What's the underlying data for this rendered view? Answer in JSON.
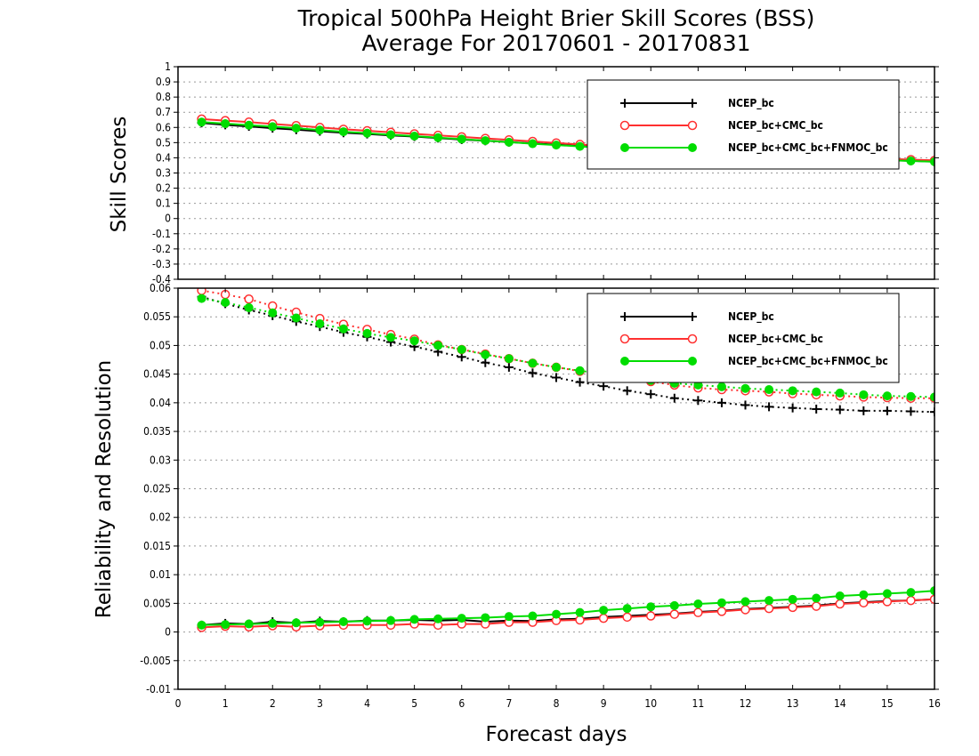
{
  "chart_data": {
    "type": "line",
    "title": "Tropical 500hPa Height Brier Skill Scores (BSS)",
    "subtitle": "Average For 20170601 - 20170831",
    "xlabel": "Forecast days",
    "xlim": [
      0,
      16
    ],
    "x_ticks": [
      "0",
      "1",
      "2",
      "3",
      "4",
      "5",
      "6",
      "7",
      "8",
      "9",
      "10",
      "11",
      "12",
      "13",
      "14",
      "15",
      "16"
    ],
    "x": [
      0.5,
      1,
      1.5,
      2,
      2.5,
      3,
      3.5,
      4,
      4.5,
      5,
      5.5,
      6,
      6.5,
      7,
      7.5,
      8,
      8.5,
      9,
      9.5,
      10,
      10.5,
      11,
      11.5,
      12,
      12.5,
      13,
      13.5,
      14,
      14.5,
      15,
      15.5,
      16
    ],
    "legend_labels": [
      "NCEP_bc",
      "NCEP_bc+CMC_bc",
      "NCEP_bc+CMC_bc+FNMOC_bc"
    ],
    "colors": {
      "NCEP_bc": "#000000",
      "NCEP_bc+CMC_bc": "#ff3030",
      "NCEP_bc+CMC_bc+FNMOC_bc": "#00dd00",
      "grid": "#999999"
    },
    "grid": true,
    "panels": [
      {
        "ylabel": "Skill Scores",
        "ylim": [
          -0.4,
          1
        ],
        "y_ticks": [
          "1",
          "0.9",
          "0.8",
          "0.7",
          "0.6",
          "0.5",
          "0.4",
          "0.3",
          "0.2",
          "0.1",
          "0",
          "-0.1",
          "-0.2",
          "-0.3",
          "-0.4"
        ],
        "legend_position": "top-right",
        "series": [
          {
            "name": "NCEP_bc",
            "marker": "plus",
            "style": "solid",
            "values": [
              0.63,
              0.617,
              0.607,
              0.595,
              0.585,
              0.575,
              0.565,
              0.557,
              0.548,
              0.54,
              0.53,
              0.52,
              0.512,
              0.503,
              0.495,
              0.487,
              0.478,
              0.47,
              0.462,
              0.455,
              0.447,
              0.44,
              0.433,
              0.425,
              0.418,
              0.412,
              0.405,
              0.398,
              0.392,
              0.385,
              0.38,
              0.375
            ]
          },
          {
            "name": "NCEP_bc+CMC_bc",
            "marker": "circle-open",
            "style": "solid",
            "values": [
              0.655,
              0.645,
              0.635,
              0.623,
              0.612,
              0.6,
              0.588,
              0.578,
              0.568,
              0.558,
              0.548,
              0.538,
              0.528,
              0.518,
              0.508,
              0.498,
              0.488,
              0.478,
              0.47,
              0.462,
              0.455,
              0.448,
              0.44,
              0.433,
              0.426,
              0.42,
              0.413,
              0.406,
              0.4,
              0.393,
              0.388,
              0.383
            ]
          },
          {
            "name": "NCEP_bc+CMC_bc+FNMOC_bc",
            "marker": "circle-filled",
            "style": "solid",
            "values": [
              0.635,
              0.625,
              0.615,
              0.605,
              0.595,
              0.583,
              0.572,
              0.562,
              0.552,
              0.543,
              0.533,
              0.523,
              0.513,
              0.503,
              0.493,
              0.484,
              0.475,
              0.466,
              0.458,
              0.45,
              0.443,
              0.436,
              0.429,
              0.422,
              0.415,
              0.409,
              0.402,
              0.396,
              0.39,
              0.384,
              0.379,
              0.374
            ]
          }
        ]
      },
      {
        "ylabel": "Reliability and Resolution",
        "ylim": [
          -0.01,
          0.06
        ],
        "y_ticks": [
          "0.06",
          "0.055",
          "0.05",
          "0.045",
          "0.04",
          "0.035",
          "0.03",
          "0.025",
          "0.02",
          "0.015",
          "0.01",
          "0.005",
          "0",
          "-0.005",
          "-0.01"
        ],
        "legend_position": "top-right",
        "series": [
          {
            "name": "NCEP_bc",
            "group": "reliability",
            "marker": "plus",
            "style": "solid",
            "values": [
              0.0012,
              0.0015,
              0.0014,
              0.0018,
              0.0016,
              0.0019,
              0.0018,
              0.002,
              0.002,
              0.0021,
              0.002,
              0.0021,
              0.0018,
              0.002,
              0.0019,
              0.0022,
              0.0023,
              0.0026,
              0.0028,
              0.003,
              0.0032,
              0.0035,
              0.0037,
              0.004,
              0.0042,
              0.0044,
              0.0046,
              0.005,
              0.0052,
              0.0054,
              0.0055,
              0.0057
            ]
          },
          {
            "name": "NCEP_bc+CMC_bc",
            "group": "reliability",
            "marker": "circle-open",
            "style": "solid",
            "values": [
              0.0008,
              0.001,
              0.0009,
              0.0011,
              0.0009,
              0.0011,
              0.0012,
              0.0012,
              0.0012,
              0.0014,
              0.0012,
              0.0014,
              0.0014,
              0.0017,
              0.0017,
              0.002,
              0.0021,
              0.0024,
              0.0026,
              0.0028,
              0.0031,
              0.0034,
              0.0036,
              0.0039,
              0.0041,
              0.0043,
              0.0045,
              0.0049,
              0.0051,
              0.0053,
              0.0055,
              0.0057
            ]
          },
          {
            "name": "NCEP_bc+CMC_bc+FNMOC_bc",
            "group": "reliability",
            "marker": "circle-filled",
            "style": "solid",
            "values": [
              0.0012,
              0.0013,
              0.0014,
              0.0015,
              0.0016,
              0.0017,
              0.0018,
              0.0019,
              0.002,
              0.0022,
              0.0023,
              0.0024,
              0.0025,
              0.0027,
              0.0028,
              0.0031,
              0.0034,
              0.0038,
              0.0041,
              0.0044,
              0.0046,
              0.0049,
              0.0051,
              0.0053,
              0.0055,
              0.0057,
              0.0059,
              0.0063,
              0.0065,
              0.0067,
              0.0069,
              0.0072
            ]
          },
          {
            "name": "NCEP_bc",
            "group": "resolution",
            "marker": "plus",
            "style": "dotted",
            "values": [
              0.0585,
              0.0573,
              0.0562,
              0.0552,
              0.0542,
              0.0533,
              0.0523,
              0.0515,
              0.0506,
              0.0498,
              0.0489,
              0.048,
              0.047,
              0.0462,
              0.0452,
              0.0444,
              0.0436,
              0.0429,
              0.0421,
              0.0415,
              0.0408,
              0.0404,
              0.04,
              0.0396,
              0.0393,
              0.0391,
              0.0389,
              0.0388,
              0.0386,
              0.0386,
              0.0385,
              0.0384
            ]
          },
          {
            "name": "NCEP_bc+CMC_bc",
            "group": "resolution",
            "marker": "circle-open",
            "style": "dotted",
            "values": [
              0.0596,
              0.0589,
              0.0581,
              0.0569,
              0.0558,
              0.0547,
              0.0537,
              0.0528,
              0.0519,
              0.0511,
              0.0501,
              0.0493,
              0.0485,
              0.0477,
              0.0469,
              0.0462,
              0.0455,
              0.0449,
              0.0443,
              0.0437,
              0.0431,
              0.0426,
              0.0423,
              0.0421,
              0.0419,
              0.0416,
              0.0414,
              0.0412,
              0.041,
              0.0409,
              0.0408,
              0.0408
            ]
          },
          {
            "name": "NCEP_bc+CMC_bc+FNMOC_bc",
            "group": "resolution",
            "marker": "circle-filled",
            "style": "dotted",
            "values": [
              0.0582,
              0.0575,
              0.0566,
              0.0557,
              0.0548,
              0.0538,
              0.0529,
              0.0521,
              0.0514,
              0.0508,
              0.05,
              0.0493,
              0.0484,
              0.0477,
              0.0469,
              0.0462,
              0.0456,
              0.045,
              0.0445,
              0.0439,
              0.0434,
              0.0431,
              0.0428,
              0.0425,
              0.0423,
              0.0421,
              0.0419,
              0.0417,
              0.0414,
              0.0412,
              0.0411,
              0.041
            ]
          }
        ]
      }
    ]
  }
}
